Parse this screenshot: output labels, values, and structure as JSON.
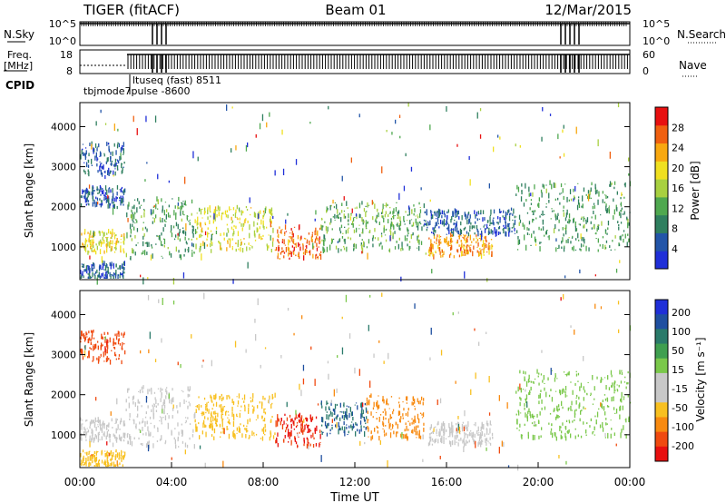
{
  "header": {
    "station": "TIGER (fitACF)",
    "beam": "Beam 01",
    "date": "12/Mar/2015"
  },
  "summary": {
    "nsky_label": "N.Sky",
    "nsky_ticks": [
      "10^5",
      "10^0"
    ],
    "nsearch_label": "N.Search",
    "nsearch_ticks": [
      "10^5",
      "10^0"
    ],
    "freq_label_1": "Freq.",
    "freq_label_2": "[MHz]",
    "freq_ticks": [
      "18",
      "8"
    ],
    "nave_label": "Nave",
    "nave_ticks": [
      "60",
      "0"
    ],
    "cpid_label": "CPID",
    "cpid_annotations": [
      "ltuseq (fast) 8511",
      "tbjmode7pulse -8600"
    ]
  },
  "colors": {
    "power": [
      "#1f2fd8",
      "#2255a8",
      "#2f7f5f",
      "#4fa84f",
      "#a8d040",
      "#f0e020",
      "#f8a810",
      "#f06010",
      "#e81010"
    ],
    "velocity": [
      "#e81010",
      "#f04a10",
      "#f88a10",
      "#f8c020",
      "#c8c8c8",
      "#c8c8c8",
      "#7ac84a",
      "#3f9f4f",
      "#2a7a6a",
      "#1f4fa0",
      "#1f2fd8"
    ]
  },
  "chart_data": [
    {
      "type": "heatmap",
      "panel": "power",
      "ylabel": "Slant Range [km]",
      "xlim": [
        "00:00",
        "24:00"
      ],
      "ylim": [
        180,
        4600
      ],
      "yticks": [
        1000,
        2000,
        3000,
        4000
      ],
      "colorbar": {
        "label": "Power [dB]",
        "range": [
          0,
          32
        ],
        "ticks": [
          4,
          8,
          12,
          16,
          20,
          24,
          28
        ]
      },
      "regions": [
        {
          "t0": 0.0,
          "t1": 1.95,
          "r0": 850,
          "r1": 1400,
          "value": 19
        },
        {
          "t0": 0.0,
          "t1": 1.95,
          "r0": 200,
          "r1": 600,
          "value": 6
        },
        {
          "t0": 0.0,
          "t1": 1.95,
          "r0": 2800,
          "r1": 3600,
          "value": 6
        },
        {
          "t0": 0.0,
          "t1": 1.95,
          "r0": 2000,
          "r1": 2500,
          "value": 5
        },
        {
          "t0": 2.0,
          "t1": 5.0,
          "r0": 700,
          "r1": 2200,
          "value": 11
        },
        {
          "t0": 5.0,
          "t1": 8.5,
          "r0": 900,
          "r1": 2000,
          "value": 18
        },
        {
          "t0": 8.5,
          "t1": 10.5,
          "r0": 700,
          "r1": 1500,
          "value": 26
        },
        {
          "t0": 10.5,
          "t1": 15.0,
          "r0": 900,
          "r1": 2100,
          "value": 13
        },
        {
          "t0": 15.2,
          "t1": 18.0,
          "r0": 750,
          "r1": 1300,
          "value": 24
        },
        {
          "t0": 15.0,
          "t1": 19.0,
          "r0": 1300,
          "r1": 1900,
          "value": 6
        },
        {
          "t0": 19.0,
          "t1": 24.0,
          "r0": 900,
          "r1": 2600,
          "value": 11
        }
      ]
    },
    {
      "type": "heatmap",
      "panel": "velocity",
      "ylabel": "Slant Range [km]",
      "xlabel": "Time UT",
      "xlim": [
        "00:00",
        "24:00"
      ],
      "xticks": [
        "00:00",
        "04:00",
        "08:00",
        "12:00",
        "16:00",
        "20:00",
        "00:00"
      ],
      "ylim": [
        180,
        4600
      ],
      "yticks": [
        1000,
        2000,
        3000,
        4000
      ],
      "colorbar": {
        "label": "Velocity [m s⁻¹]",
        "ticks": [
          "200",
          "100",
          "50",
          "15",
          "-15",
          "-50",
          "-100",
          "-200"
        ]
      },
      "regions": [
        {
          "t0": 0.0,
          "t1": 1.95,
          "r0": 850,
          "r1": 1400,
          "value": 0
        },
        {
          "t0": 0.0,
          "t1": 1.95,
          "r0": 200,
          "r1": 600,
          "value": -40
        },
        {
          "t0": 0.0,
          "t1": 1.95,
          "r0": 2800,
          "r1": 3600,
          "value": -120
        },
        {
          "t0": 2.0,
          "t1": 5.0,
          "r0": 700,
          "r1": 2200,
          "value": 0
        },
        {
          "t0": 5.0,
          "t1": 8.5,
          "r0": 900,
          "r1": 2000,
          "value": -30
        },
        {
          "t0": 8.5,
          "t1": 10.5,
          "r0": 700,
          "r1": 1500,
          "value": -200
        },
        {
          "t0": 10.5,
          "t1": 12.5,
          "r0": 1000,
          "r1": 1800,
          "value": 150
        },
        {
          "t0": 12.5,
          "t1": 15.0,
          "r0": 900,
          "r1": 2000,
          "value": -60
        },
        {
          "t0": 15.2,
          "t1": 18.0,
          "r0": 750,
          "r1": 1300,
          "value": 0
        },
        {
          "t0": 19.0,
          "t1": 24.0,
          "r0": 900,
          "r1": 2600,
          "value": 30
        }
      ]
    }
  ]
}
